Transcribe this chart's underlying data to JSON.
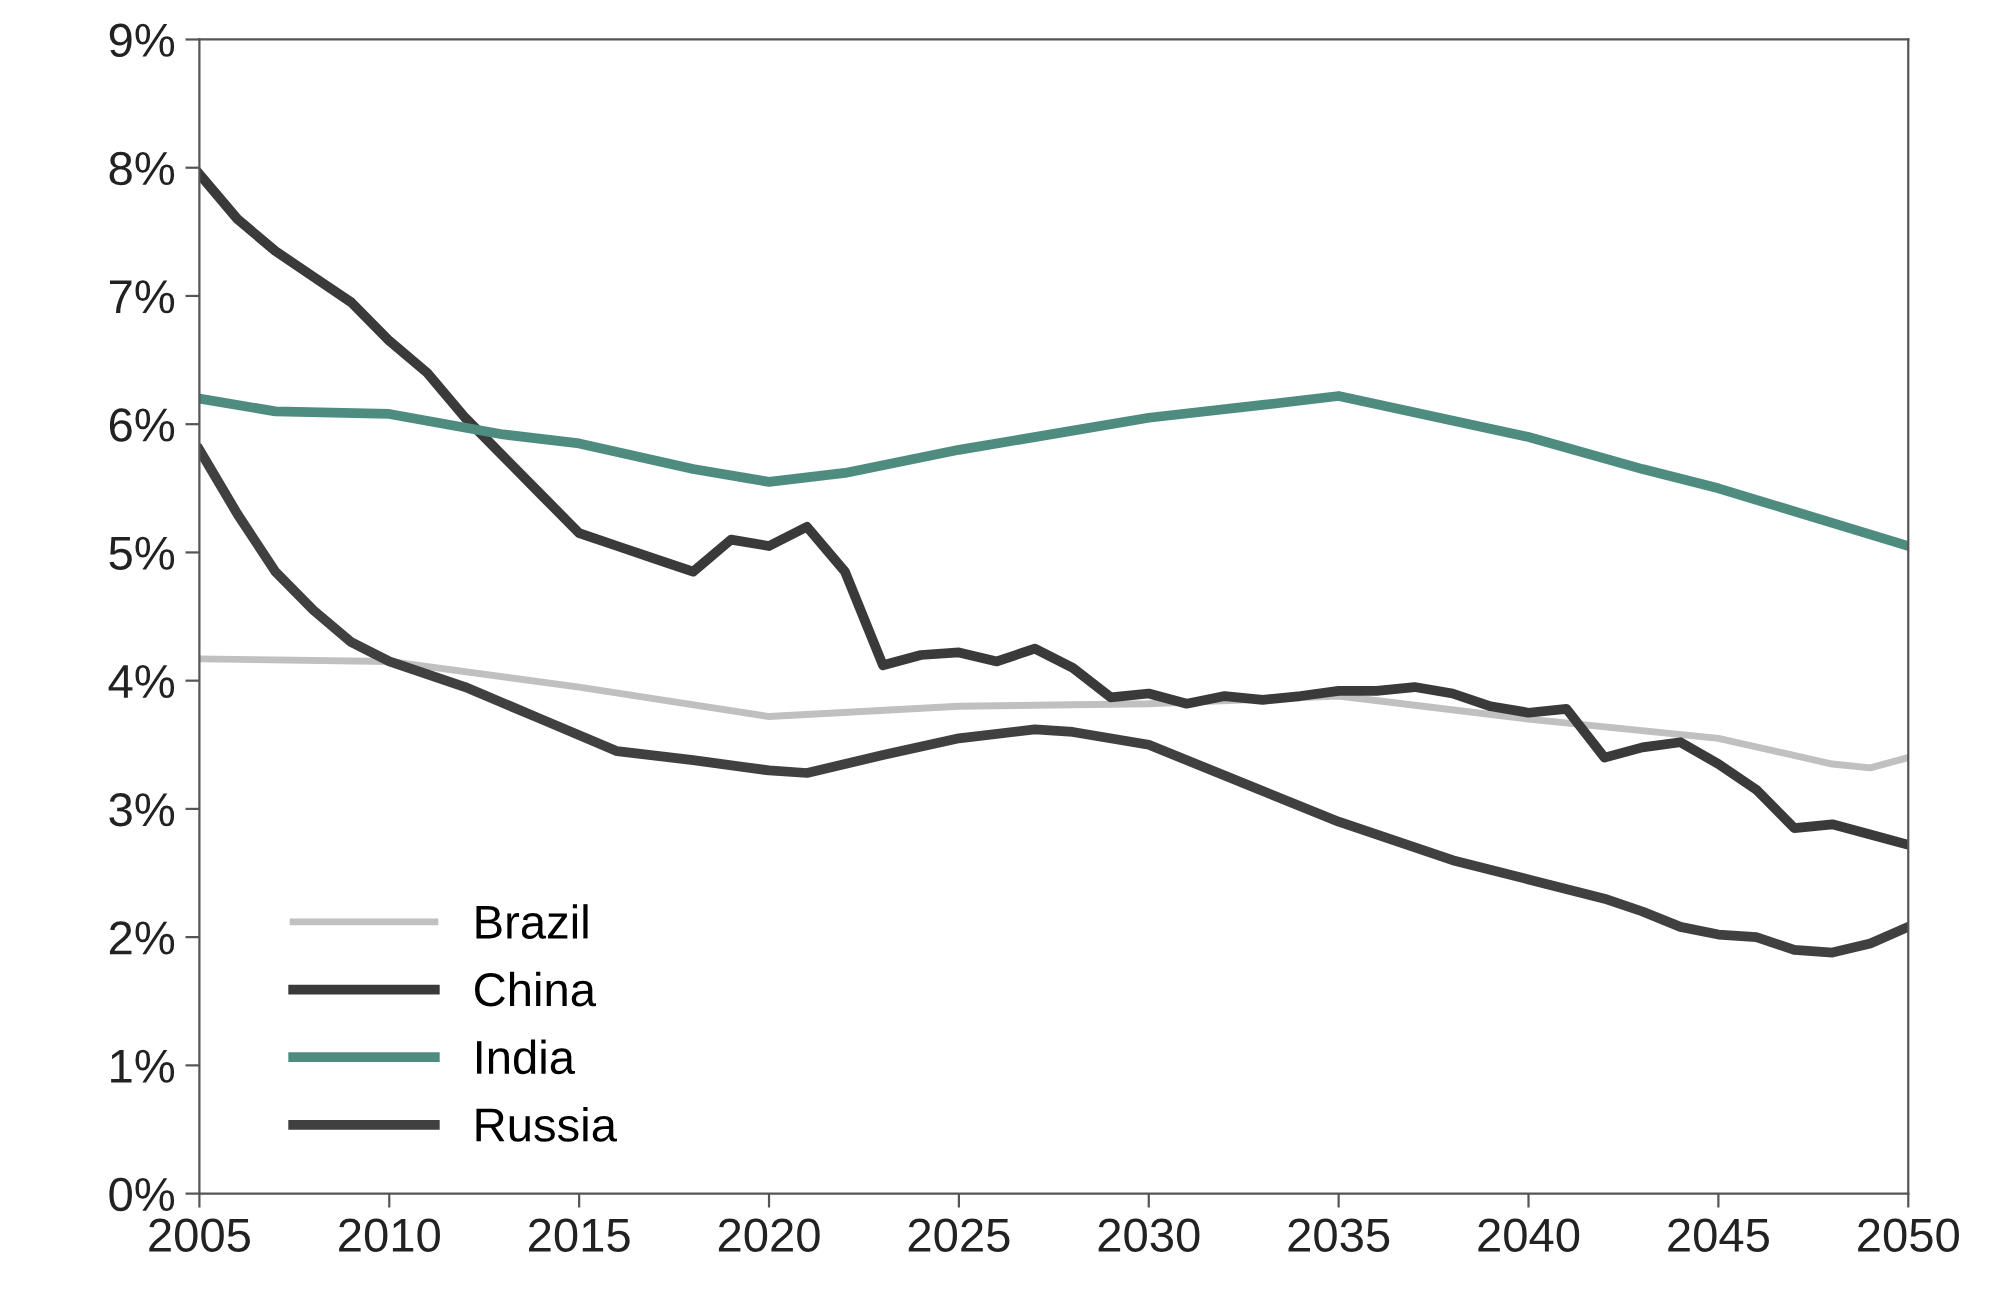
{
  "chart_data": {
    "type": "line",
    "ylim": [
      0,
      9
    ],
    "xlim": [
      2005,
      2050
    ],
    "xticks": [
      2005,
      2010,
      2015,
      2020,
      2025,
      2030,
      2035,
      2040,
      2045,
      2050
    ],
    "yticks": [
      {
        "value": 0,
        "label": "0%"
      },
      {
        "value": 1,
        "label": "1%"
      },
      {
        "value": 2,
        "label": "2%"
      },
      {
        "value": 3,
        "label": "3%"
      },
      {
        "value": 4,
        "label": "4%"
      },
      {
        "value": 5,
        "label": "5%"
      },
      {
        "value": 6,
        "label": "6%"
      },
      {
        "value": 7,
        "label": "7%"
      },
      {
        "value": 8,
        "label": "8%"
      },
      {
        "value": 9,
        "label": "9%"
      }
    ],
    "grid": false,
    "legend": "bottom left",
    "marker": "none",
    "line_style": "solid",
    "series": [
      {
        "name": "Brazil",
        "color": "#c0c0c0",
        "x": [
          2005,
          2010,
          2015,
          2020,
          2025,
          2030,
          2035,
          2040,
          2045,
          2048,
          2049,
          2050
        ],
        "values": [
          4.17,
          4.15,
          3.95,
          3.72,
          3.8,
          3.82,
          3.88,
          3.7,
          3.55,
          3.35,
          3.32,
          3.4
        ]
      },
      {
        "name": "China",
        "color": "#3a3a3a",
        "x": [
          2005,
          2006,
          2007,
          2008,
          2009,
          2010,
          2011,
          2012,
          2013,
          2014,
          2015,
          2016,
          2017,
          2018,
          2019,
          2020,
          2021,
          2022,
          2023,
          2024,
          2025,
          2026,
          2027,
          2028,
          2029,
          2030,
          2031,
          2032,
          2033,
          2034,
          2035,
          2036,
          2037,
          2038,
          2039,
          2040,
          2041,
          2042,
          2043,
          2044,
          2045,
          2046,
          2047,
          2048,
          2049,
          2050
        ],
        "values": [
          7.95,
          7.6,
          7.35,
          7.15,
          6.95,
          6.65,
          6.4,
          6.05,
          5.75,
          5.45,
          5.15,
          5.05,
          4.95,
          4.85,
          5.1,
          5.05,
          5.2,
          4.85,
          4.12,
          4.2,
          4.22,
          4.15,
          4.25,
          4.1,
          3.87,
          3.9,
          3.82,
          3.88,
          3.85,
          3.88,
          3.92,
          3.92,
          3.95,
          3.9,
          3.8,
          3.75,
          3.78,
          3.4,
          3.48,
          3.52,
          3.35,
          3.15,
          2.85,
          2.88,
          2.8,
          2.72
        ]
      },
      {
        "name": "India",
        "color": "#4f8c80",
        "x": [
          2005,
          2007,
          2010,
          2013,
          2015,
          2018,
          2020,
          2022,
          2025,
          2028,
          2030,
          2033,
          2035,
          2040,
          2043,
          2045,
          2050
        ],
        "values": [
          6.2,
          6.1,
          6.08,
          5.92,
          5.85,
          5.65,
          5.55,
          5.62,
          5.8,
          5.95,
          6.05,
          6.15,
          6.22,
          5.9,
          5.65,
          5.5,
          5.05
        ]
      },
      {
        "name": "Russia",
        "color": "#404040",
        "x": [
          2005,
          2006,
          2007,
          2008,
          2009,
          2010,
          2012,
          2014,
          2016,
          2018,
          2020,
          2021,
          2023,
          2025,
          2027,
          2028,
          2030,
          2035,
          2038,
          2040,
          2042,
          2043,
          2044,
          2045,
          2046,
          2047,
          2048,
          2049,
          2050
        ],
        "values": [
          5.8,
          5.3,
          4.85,
          4.55,
          4.3,
          4.15,
          3.95,
          3.7,
          3.45,
          3.38,
          3.3,
          3.28,
          3.42,
          3.55,
          3.62,
          3.6,
          3.5,
          2.9,
          2.6,
          2.45,
          2.3,
          2.2,
          2.08,
          2.02,
          2.0,
          1.9,
          1.88,
          1.95,
          2.08
        ]
      }
    ]
  }
}
